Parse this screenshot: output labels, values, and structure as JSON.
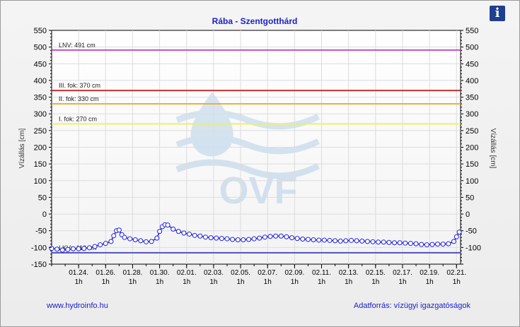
{
  "info_button": {
    "label": "i"
  },
  "footer": {
    "website": "www.hydroinfo.hu",
    "source": "Adatforrás: vízügyi igazgatóságok"
  },
  "chart_data": {
    "type": "line",
    "title": "Rába - Szentgotthárd",
    "ylabel_left": "Vízállás [cm]",
    "ylabel_right": "Vízállás [cm]",
    "ylim": [
      -150,
      550
    ],
    "yticks": [
      550,
      500,
      450,
      400,
      350,
      300,
      250,
      200,
      150,
      100,
      50,
      0,
      -50,
      -100,
      -150
    ],
    "yticks_right": [
      550,
      500,
      450,
      400,
      350,
      300,
      250,
      200,
      150,
      100,
      50,
      0,
      -50,
      -100
    ],
    "xlim_days": [
      22.0,
      52.3
    ],
    "xticks": [
      {
        "date": "01.24.",
        "hour": "1h",
        "day": 24
      },
      {
        "date": "01.26.",
        "hour": "1h",
        "day": 26
      },
      {
        "date": "01.28.",
        "hour": "1h",
        "day": 28
      },
      {
        "date": "01.30.",
        "hour": "1h",
        "day": 30
      },
      {
        "date": "02.01.",
        "hour": "1h",
        "day": 32
      },
      {
        "date": "02.03.",
        "hour": "1h",
        "day": 34
      },
      {
        "date": "02.05.",
        "hour": "1h",
        "day": 36
      },
      {
        "date": "02.07.",
        "hour": "1h",
        "day": 38
      },
      {
        "date": "02.09.",
        "hour": "1h",
        "day": 40
      },
      {
        "date": "02.11.",
        "hour": "1h",
        "day": 42
      },
      {
        "date": "02.13.",
        "hour": "1h",
        "day": 44
      },
      {
        "date": "02.15.",
        "hour": "1h",
        "day": 46
      },
      {
        "date": "02.17.",
        "hour": "1h",
        "day": 48
      },
      {
        "date": "02.19.",
        "hour": "1h",
        "day": 50
      },
      {
        "date": "02.21.",
        "hour": "1h",
        "day": 52
      }
    ],
    "thresholds": [
      {
        "label": "LNV: 491 cm",
        "value": 491,
        "color": "#c050c8"
      },
      {
        "label": "III. fok: 370 cm",
        "value": 370,
        "color": "#c83232"
      },
      {
        "label": "II. fok: 330 cm",
        "value": 330,
        "color": "#f0b030"
      },
      {
        "label": "I. fok: 270 cm",
        "value": 270,
        "color": "#f0f060"
      },
      {
        "label": "LKV: -116 cm",
        "value": -116,
        "color": "#5050c0"
      }
    ],
    "watermark": "OVF",
    "series": [
      {
        "color": "#1f1fdc",
        "x": [
          22.0,
          22.4,
          22.8,
          23.2,
          23.6,
          24.0,
          24.4,
          24.8,
          25.2,
          25.6,
          26.0,
          26.4,
          26.6,
          26.8,
          27.0,
          27.2,
          27.4,
          27.8,
          28.2,
          28.6,
          29.0,
          29.4,
          29.8,
          30.0,
          30.2,
          30.4,
          30.6,
          31.0,
          31.4,
          31.8,
          32.2,
          32.6,
          33.0,
          33.4,
          33.8,
          34.2,
          34.6,
          35.0,
          35.4,
          35.8,
          36.2,
          36.6,
          37.0,
          37.4,
          37.8,
          38.2,
          38.6,
          39.0,
          39.4,
          39.8,
          40.2,
          40.6,
          41.0,
          41.4,
          41.8,
          42.2,
          42.6,
          43.0,
          43.4,
          43.8,
          44.2,
          44.6,
          45.0,
          45.4,
          45.8,
          46.2,
          46.6,
          47.0,
          47.4,
          47.8,
          48.2,
          48.6,
          49.0,
          49.4,
          49.8,
          50.2,
          50.6,
          51.0,
          51.4,
          51.8,
          52.0,
          52.2
        ],
        "y": [
          -103,
          -105,
          -108,
          -106,
          -104,
          -104,
          -103,
          -101,
          -97,
          -92,
          -88,
          -82,
          -65,
          -50,
          -48,
          -62,
          -70,
          -74,
          -77,
          -80,
          -83,
          -82,
          -72,
          -52,
          -38,
          -32,
          -33,
          -45,
          -52,
          -57,
          -60,
          -64,
          -66,
          -69,
          -71,
          -72,
          -73,
          -74,
          -76,
          -77,
          -77,
          -76,
          -74,
          -72,
          -69,
          -67,
          -66,
          -66,
          -68,
          -71,
          -73,
          -75,
          -76,
          -77,
          -78,
          -78,
          -79,
          -80,
          -81,
          -80,
          -79,
          -80,
          -81,
          -82,
          -83,
          -84,
          -84,
          -85,
          -86,
          -86,
          -87,
          -88,
          -89,
          -91,
          -92,
          -91,
          -90,
          -90,
          -89,
          -82,
          -68,
          -54
        ]
      }
    ]
  }
}
